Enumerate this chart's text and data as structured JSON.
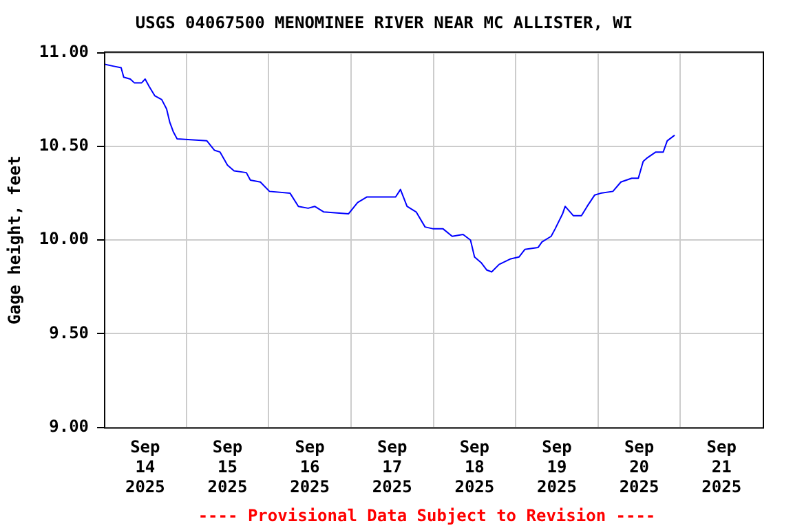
{
  "chart_data": {
    "type": "line",
    "title": "USGS 04067500 MENOMINEE RIVER NEAR MC ALLISTER, WI",
    "ylabel": "Gage height, feet",
    "annotations": [
      "---- Provisional Data Subject to Revision ----"
    ],
    "xlim": [
      "2025-09-14",
      "2025-09-22"
    ],
    "xticks": [
      {
        "value": "2025-09-14T12:00",
        "label": "Sep\n14\n2025"
      },
      {
        "value": "2025-09-15T12:00",
        "label": "Sep\n15\n2025"
      },
      {
        "value": "2025-09-16T12:00",
        "label": "Sep\n16\n2025"
      },
      {
        "value": "2025-09-17T12:00",
        "label": "Sep\n17\n2025"
      },
      {
        "value": "2025-09-18T12:00",
        "label": "Sep\n18\n2025"
      },
      {
        "value": "2025-09-19T12:00",
        "label": "Sep\n19\n2025"
      },
      {
        "value": "2025-09-20T12:00",
        "label": "Sep\n20\n2025"
      },
      {
        "value": "2025-09-21T12:00",
        "label": "Sep\n21\n2025"
      },
      {
        "value": "2025-09-15",
        "label": null
      },
      {
        "value": "2025-09-16",
        "label": null
      },
      {
        "value": "2025-09-17",
        "label": null
      },
      {
        "value": "2025-09-18",
        "label": null
      },
      {
        "value": "2025-09-19",
        "label": null
      },
      {
        "value": "2025-09-20",
        "label": null
      },
      {
        "value": "2025-09-21",
        "label": null
      }
    ],
    "ylim": [
      9,
      11
    ],
    "yticks": [
      {
        "value": 9,
        "label": "9.00"
      },
      {
        "value": 9.5,
        "label": "9.50"
      },
      {
        "value": 10,
        "label": "10.00"
      },
      {
        "value": 10.5,
        "label": "10.50"
      },
      {
        "value": 11,
        "label": "11.00"
      }
    ],
    "grid": true,
    "legend": false,
    "marker": "none",
    "line_style": "solid",
    "series": [
      {
        "color": "#0000ff",
        "x": [
          "2025-09-14T00:00",
          "2025-09-14T02:24",
          "2025-09-14T05:00",
          "2025-09-14T05:45",
          "2025-09-14T07:40",
          "2025-09-14T08:50",
          "2025-09-14T11:00",
          "2025-09-14T12:00",
          "2025-09-14T13:10",
          "2025-09-14T14:50",
          "2025-09-14T16:50",
          "2025-09-14T18:15",
          "2025-09-14T19:10",
          "2025-09-14T20:10",
          "2025-09-14T21:20",
          "2025-09-15T06:00",
          "2025-09-15T08:10",
          "2025-09-15T09:50",
          "2025-09-15T12:00",
          "2025-09-15T13:55",
          "2025-09-15T17:30",
          "2025-09-15T18:40",
          "2025-09-15T21:35",
          "2025-09-16T00:15",
          "2025-09-16T06:15",
          "2025-09-16T08:40",
          "2025-09-16T11:30",
          "2025-09-16T13:25",
          "2025-09-16T16:05",
          "2025-09-16T23:15",
          "2025-09-17T01:55",
          "2025-09-17T04:35",
          "2025-09-17T13:00",
          "2025-09-17T14:25",
          "2025-09-17T16:20",
          "2025-09-17T19:00",
          "2025-09-17T21:35",
          "2025-09-18T00:00",
          "2025-09-18T02:50",
          "2025-09-18T05:30",
          "2025-09-18T08:40",
          "2025-09-18T10:50",
          "2025-09-18T12:00",
          "2025-09-18T13:55",
          "2025-09-18T15:35",
          "2025-09-18T17:00",
          "2025-09-18T19:10",
          "2025-09-18T22:35",
          "2025-09-19T01:00",
          "2025-09-19T02:40",
          "2025-09-19T06:30",
          "2025-09-19T07:40",
          "2025-09-19T10:20",
          "2025-09-19T11:30",
          "2025-09-19T13:40",
          "2025-09-19T14:25",
          "2025-09-19T16:50",
          "2025-09-19T19:10",
          "2025-09-19T20:50",
          "2025-09-19T23:00",
          "2025-09-20T00:45",
          "2025-09-20T04:20",
          "2025-09-20T06:40",
          "2025-09-20T09:50",
          "2025-09-20T11:45",
          "2025-09-20T13:10",
          "2025-09-20T14:25",
          "2025-09-20T16:50",
          "2025-09-20T19:00",
          "2025-09-20T20:10",
          "2025-09-20T22:20"
        ],
        "values": [
          10.94,
          10.93,
          10.92,
          10.87,
          10.86,
          10.84,
          10.84,
          10.86,
          10.82,
          10.77,
          10.75,
          10.7,
          10.63,
          10.58,
          10.54,
          10.53,
          10.48,
          10.47,
          10.4,
          10.37,
          10.36,
          10.32,
          10.31,
          10.26,
          10.25,
          10.18,
          10.17,
          10.18,
          10.15,
          10.14,
          10.2,
          10.23,
          10.23,
          10.27,
          10.18,
          10.15,
          10.07,
          10.06,
          10.06,
          10.02,
          10.03,
          10.0,
          9.91,
          9.88,
          9.84,
          9.83,
          9.87,
          9.9,
          9.91,
          9.95,
          9.96,
          9.99,
          10.02,
          10.06,
          10.14,
          10.18,
          10.13,
          10.13,
          10.18,
          10.24,
          10.25,
          10.26,
          10.31,
          10.33,
          10.33,
          10.42,
          10.44,
          10.47,
          10.47,
          10.53,
          10.56
        ]
      }
    ]
  }
}
